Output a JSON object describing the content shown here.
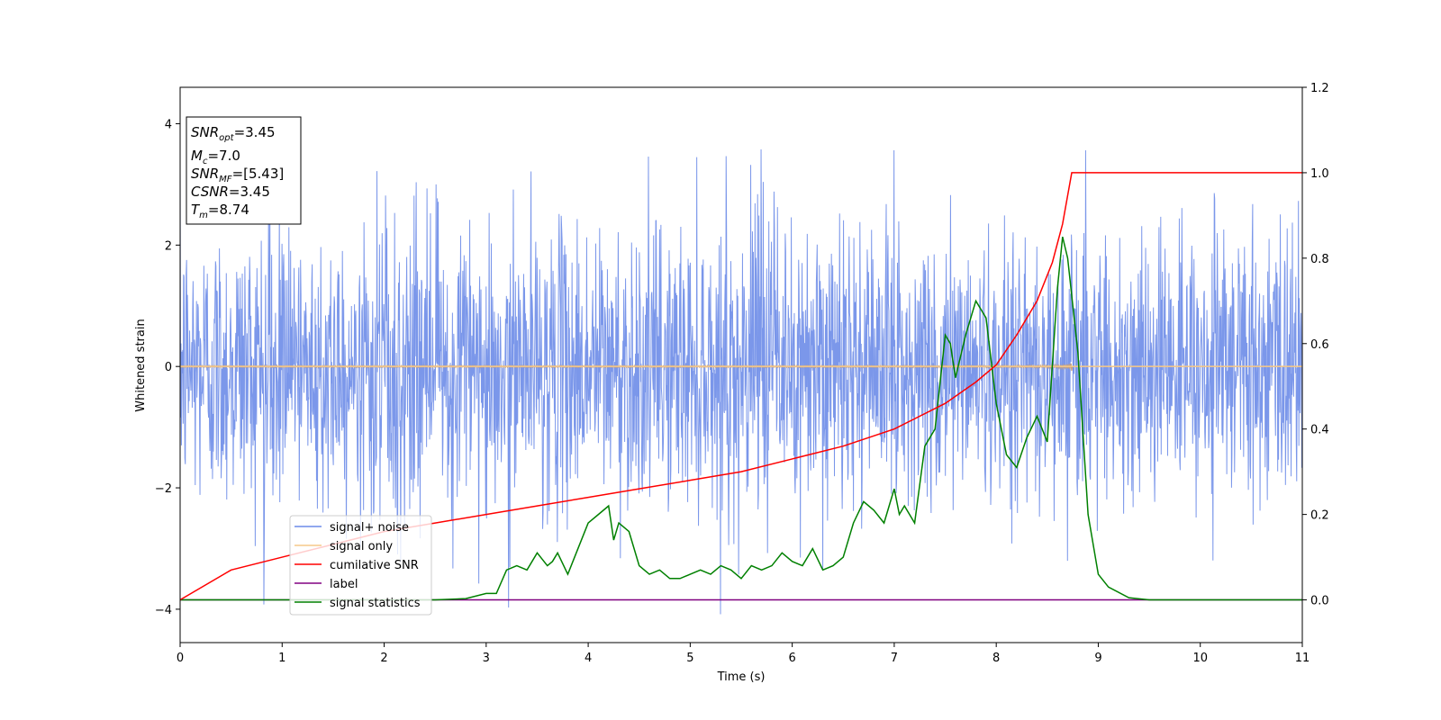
{
  "chart_data": {
    "type": "line",
    "xlabel": "Time (s)",
    "ylabel": "Whitened strain",
    "xlim": [
      0,
      11
    ],
    "ylim_left": [
      -4.55,
      4.6
    ],
    "ylim_right": [
      -0.1,
      1.2
    ],
    "x_ticks": [
      "0",
      "1",
      "2",
      "3",
      "4",
      "5",
      "6",
      "7",
      "8",
      "9",
      "10",
      "11"
    ],
    "y_ticks_left": [
      "4",
      "2",
      "0",
      "−2",
      "−4"
    ],
    "y_ticks_left_values": [
      4,
      2,
      0,
      -2,
      -4
    ],
    "y_ticks_right": [
      "1.2",
      "1.0",
      "0.8",
      "0.6",
      "0.4",
      "0.2",
      "0.0"
    ],
    "y_ticks_right_values": [
      1.2,
      1.0,
      0.8,
      0.6,
      0.4,
      0.2,
      0.0
    ],
    "grid": false,
    "legend_position": "lower-left",
    "legend": [
      "signal+ noise",
      "signal only",
      "cumilative SNR",
      "label",
      "signal statistics"
    ],
    "colors": {
      "noise": "#6d8ce8",
      "signal": "#f5c98a",
      "signal_burst": "#c8a07a",
      "cum_snr": "#ff0000",
      "label": "#800080",
      "stats": "#008000"
    },
    "annotation": {
      "snr_opt_main": "SNR",
      "snr_opt_sub": "opt",
      "snr_opt_value": "=3.45",
      "mc_main": "M",
      "mc_sub": "c",
      "mc_value": "=7.0",
      "snr_mf_main": "SNR",
      "snr_mf_sub": "MF",
      "snr_mf_value": "=[5.43]",
      "csnr_main": "CSNR",
      "csnr_value": "=3.45",
      "tm_main": "T",
      "tm_sub": "m",
      "tm_value": "=8.74"
    },
    "series": [
      {
        "name": "signal+ noise",
        "axis": "left",
        "description_values": "dense noise, amplitude roughly within [-4.1, 4.2], t from 0 to 11 s",
        "amplitude_range": [
          -4.1,
          4.2
        ]
      },
      {
        "name": "signal only",
        "axis": "left",
        "chirp_peak_time": 8.74,
        "chirp_peak_amplitude": 0.4
      },
      {
        "name": "cumilative SNR",
        "axis": "right",
        "x": [
          0,
          0.5,
          1,
          1.5,
          2,
          2.5,
          3,
          3.5,
          4,
          4.5,
          5,
          5.5,
          6,
          6.5,
          7,
          7.5,
          7.8,
          8,
          8.2,
          8.4,
          8.55,
          8.65,
          8.74,
          8.76,
          11
        ],
        "values": [
          0.0,
          0.07,
          0.1,
          0.13,
          0.16,
          0.18,
          0.2,
          0.22,
          0.24,
          0.26,
          0.28,
          0.3,
          0.33,
          0.36,
          0.4,
          0.46,
          0.51,
          0.55,
          0.62,
          0.7,
          0.79,
          0.88,
          1.0,
          1.0,
          1.0
        ]
      },
      {
        "name": "label",
        "axis": "right",
        "x": [
          0,
          11
        ],
        "values": [
          0.0,
          0.0
        ]
      },
      {
        "name": "signal statistics",
        "axis": "right",
        "x": [
          0,
          0.5,
          1,
          1.5,
          2,
          2.5,
          2.8,
          3.0,
          3.1,
          3.2,
          3.3,
          3.4,
          3.5,
          3.6,
          3.65,
          3.7,
          3.8,
          3.9,
          4.0,
          4.1,
          4.2,
          4.25,
          4.3,
          4.4,
          4.5,
          4.6,
          4.7,
          4.8,
          4.9,
          5.0,
          5.1,
          5.2,
          5.3,
          5.4,
          5.5,
          5.6,
          5.7,
          5.8,
          5.9,
          6.0,
          6.1,
          6.2,
          6.3,
          6.4,
          6.5,
          6.6,
          6.7,
          6.8,
          6.9,
          7.0,
          7.05,
          7.1,
          7.2,
          7.3,
          7.4,
          7.5,
          7.55,
          7.6,
          7.7,
          7.8,
          7.9,
          8.0,
          8.1,
          8.2,
          8.3,
          8.4,
          8.5,
          8.6,
          8.65,
          8.7,
          8.8,
          8.9,
          9.0,
          9.1,
          9.3,
          9.5,
          11
        ],
        "values": [
          0.0,
          0.0,
          0.0,
          0.0,
          0.0,
          0.0,
          0.003,
          0.015,
          0.015,
          0.07,
          0.08,
          0.07,
          0.11,
          0.08,
          0.09,
          0.11,
          0.06,
          0.12,
          0.18,
          0.2,
          0.22,
          0.14,
          0.18,
          0.16,
          0.08,
          0.06,
          0.07,
          0.05,
          0.05,
          0.06,
          0.07,
          0.06,
          0.08,
          0.07,
          0.05,
          0.08,
          0.07,
          0.08,
          0.11,
          0.09,
          0.08,
          0.12,
          0.07,
          0.08,
          0.1,
          0.18,
          0.23,
          0.21,
          0.18,
          0.26,
          0.2,
          0.22,
          0.18,
          0.36,
          0.4,
          0.62,
          0.6,
          0.52,
          0.62,
          0.7,
          0.66,
          0.46,
          0.34,
          0.31,
          0.38,
          0.43,
          0.37,
          0.73,
          0.85,
          0.8,
          0.58,
          0.2,
          0.06,
          0.03,
          0.005,
          0.0,
          0.0
        ]
      }
    ]
  }
}
